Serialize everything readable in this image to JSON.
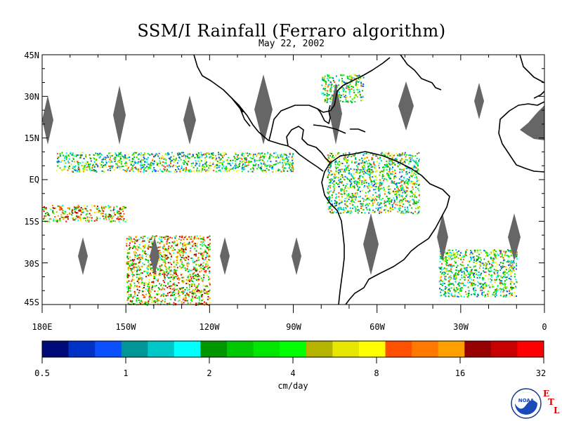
{
  "title": "SSM/I Rainfall (Ferraro algorithm)",
  "subtitle": "May 22, 2002",
  "map": {
    "lat_labels": [
      "45N",
      "30N",
      "15N",
      "EQ",
      "15S",
      "30S",
      "45S"
    ],
    "lon_labels": [
      "180E",
      "150W",
      "120W",
      "90W",
      "60W",
      "30W",
      "0"
    ],
    "extent": {
      "lon_min": -180,
      "lon_max": 0,
      "lat_min": -45,
      "lat_max": 45
    },
    "no_data_color": "#666666",
    "coastline_color": "#000000",
    "features": [
      {
        "name": "itcz-east-pacific",
        "lon": [
          -175,
          -90
        ],
        "lat": [
          3,
          10
        ],
        "intensity": "moderate"
      },
      {
        "name": "south-pacific-front",
        "lon": [
          -180,
          -150
        ],
        "lat": [
          -15,
          -9
        ],
        "intensity": "heavy"
      },
      {
        "name": "southeast-pacific-storms",
        "lon": [
          -150,
          -120
        ],
        "lat": [
          -45,
          -20
        ],
        "intensity": "heavy"
      },
      {
        "name": "gulf-stream-storms",
        "lon": [
          -80,
          -65
        ],
        "lat": [
          28,
          38
        ],
        "intensity": "moderate"
      },
      {
        "name": "amazon-convection",
        "lon": [
          -78,
          -45
        ],
        "lat": [
          -12,
          10
        ],
        "intensity": "moderate"
      },
      {
        "name": "south-atlantic-storms",
        "lon": [
          -38,
          -10
        ],
        "lat": [
          -42,
          -25
        ],
        "intensity": "moderate"
      }
    ]
  },
  "colorbar": {
    "colors": [
      "#000a78",
      "#0032c8",
      "#0a50ff",
      "#009696",
      "#00c8c8",
      "#00ffff",
      "#009600",
      "#00c800",
      "#00e600",
      "#00ff00",
      "#b4b400",
      "#e6e600",
      "#ffff00",
      "#ff5000",
      "#ff7800",
      "#ffa000",
      "#960000",
      "#c80000",
      "#ff0000"
    ],
    "tick_labels": [
      "0.5",
      "1",
      "2",
      "4",
      "8",
      "16",
      "32"
    ],
    "unit": "cm/day"
  },
  "branding": {
    "logo_text": "NOAA",
    "etl_letters": [
      "E",
      "T",
      "L"
    ]
  }
}
